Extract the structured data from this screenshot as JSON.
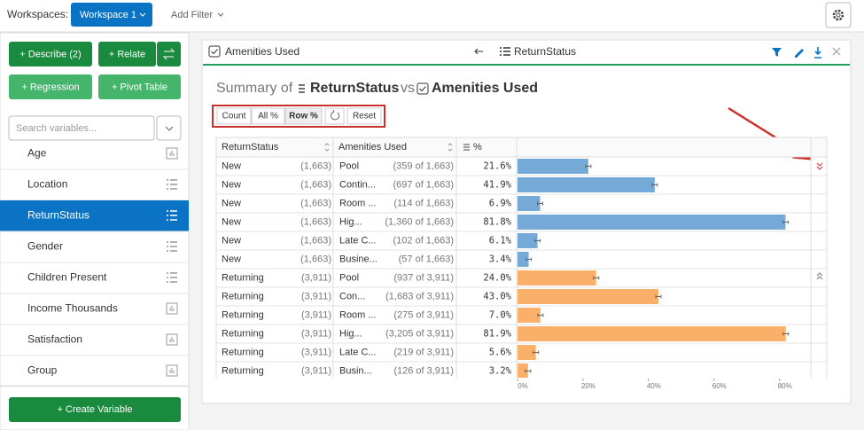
{
  "toolbar": {
    "workspaces_label": "Workspaces:",
    "workspace": "Workspace 1",
    "add_filter": "Add Filter"
  },
  "sidebar": {
    "buttons": [
      "+ Describe (2)",
      "+ Relate",
      "+ Regression",
      "+ Pivot Table"
    ],
    "search_placeholder": "Search variables...",
    "variables": [
      {
        "name": "Age",
        "kind": "numeric"
      },
      {
        "name": "Location",
        "kind": "list"
      },
      {
        "name": "ReturnStatus",
        "kind": "list",
        "selected": true
      },
      {
        "name": "Gender",
        "kind": "list"
      },
      {
        "name": "Children Present",
        "kind": "list"
      },
      {
        "name": "Income Thousands",
        "kind": "numeric"
      },
      {
        "name": "Satisfaction",
        "kind": "numeric"
      },
      {
        "name": "Group",
        "kind": "numeric"
      }
    ],
    "create": "+ Create Variable"
  },
  "panel": {
    "left_var": "Amenities Used",
    "right_var": "ReturnStatus",
    "summary_prefix": "Summary of",
    "summary_var1": "ReturnStatus",
    "summary_vs": "vs",
    "summary_var2": "Amenities Used",
    "modes": [
      {
        "label": "Count"
      },
      {
        "label": "All %"
      },
      {
        "label": "Row %",
        "active": true
      }
    ],
    "reset": "Reset",
    "columns": [
      "ReturnStatus",
      "Amenities Used",
      "%"
    ],
    "rows": [
      {
        "group": "New",
        "group_n": "(1,663)",
        "amenity": "Pool",
        "count": "(359 of 1,663)",
        "pct": 21.6,
        "pct_label": "21.6%",
        "color": "#74a9d8"
      },
      {
        "group": "New",
        "group_n": "(1,663)",
        "amenity": "Contin...",
        "count": "(697 of 1,663)",
        "pct": 41.9,
        "pct_label": "41.9%",
        "color": "#74a9d8"
      },
      {
        "group": "New",
        "group_n": "(1,663)",
        "amenity": "Room ...",
        "count": "(114 of 1,663)",
        "pct": 6.9,
        "pct_label": "6.9%",
        "color": "#74a9d8"
      },
      {
        "group": "New",
        "group_n": "(1,663)",
        "amenity": "Hig...",
        "count": "(1,360 of 1,663)",
        "pct": 81.8,
        "pct_label": "81.8%",
        "color": "#74a9d8"
      },
      {
        "group": "New",
        "group_n": "(1,663)",
        "amenity": "Late C...",
        "count": "(102 of 1,663)",
        "pct": 6.1,
        "pct_label": "6.1%",
        "color": "#74a9d8"
      },
      {
        "group": "New",
        "group_n": "(1,663)",
        "amenity": "Busine...",
        "count": "(57 of 1,663)",
        "pct": 3.4,
        "pct_label": "3.4%",
        "color": "#74a9d8"
      },
      {
        "group": "Returning",
        "group_n": "(3,911)",
        "amenity": "Pool",
        "count": "(937 of 3,911)",
        "pct": 24,
        "pct_label": "24.0%",
        "color": "#fbb06a"
      },
      {
        "group": "Returning",
        "group_n": "(3,911)",
        "amenity": "Con...",
        "count": "(1,683 of 3,911)",
        "pct": 43,
        "pct_label": "43.0%",
        "color": "#fbb06a"
      },
      {
        "group": "Returning",
        "group_n": "(3,911)",
        "amenity": "Room ...",
        "count": "(275 of 3,911)",
        "pct": 7,
        "pct_label": "7.0%",
        "color": "#fbb06a"
      },
      {
        "group": "Returning",
        "group_n": "(3,911)",
        "amenity": "Hig...",
        "count": "(3,205 of 3,911)",
        "pct": 81.9,
        "pct_label": "81.9%",
        "color": "#fbb06a"
      },
      {
        "group": "Returning",
        "group_n": "(3,911)",
        "amenity": "Late C...",
        "count": "(219 of 3,911)",
        "pct": 5.6,
        "pct_label": "5.6%",
        "color": "#fbb06a"
      },
      {
        "group": "Returning",
        "group_n": "(3,911)",
        "amenity": "Busin...",
        "count": "(126 of 3,911)",
        "pct": 3.2,
        "pct_label": "3.2%",
        "color": "#fbb06a"
      }
    ],
    "bar_axis": {
      "xlim": [
        0,
        89
      ],
      "xticks": [
        {
          "value": 0,
          "label": "0%"
        },
        {
          "value": 20,
          "label": "20%"
        },
        {
          "value": 40,
          "label": "40%"
        },
        {
          "value": 60,
          "label": "60%"
        },
        {
          "value": 80,
          "label": "80%"
        }
      ]
    }
  }
}
